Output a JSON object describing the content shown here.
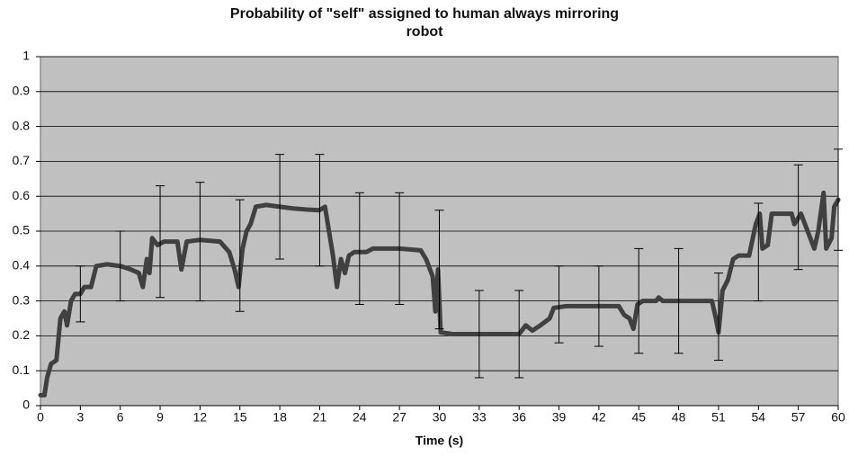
{
  "chart_data": {
    "type": "line",
    "title": "Probability of \"self\" assigned to human always mirroring robot",
    "x_label": "Time (s)",
    "xlim": [
      0,
      60
    ],
    "xticks": [
      0,
      3,
      6,
      9,
      12,
      15,
      18,
      21,
      24,
      27,
      30,
      33,
      36,
      39,
      42,
      45,
      48,
      51,
      54,
      57,
      60
    ],
    "ylim": [
      0,
      1
    ],
    "yticks": [
      0,
      0.1,
      0.2,
      0.3,
      0.4,
      0.5,
      0.6,
      0.7,
      0.8,
      0.9,
      1
    ],
    "grid": true,
    "background": "#c0c0c0",
    "series": [
      {
        "color": "#404040",
        "x": [
          0,
          0.3,
          0.5,
          0.8,
          1.2,
          1.5,
          1.8,
          2.0,
          2.3,
          2.6,
          3.0,
          3.3,
          3.8,
          4.2,
          5,
          6,
          6.8,
          7.4,
          7.7,
          8.0,
          8.2,
          8.4,
          8.8,
          9.3,
          10.3,
          10.6,
          11,
          12,
          13.5,
          14.2,
          14.6,
          14.9,
          15.2,
          15.5,
          15.8,
          16.2,
          17,
          18,
          19,
          20,
          21,
          21.4,
          21.7,
          22,
          22.3,
          22.6,
          22.9,
          23.2,
          23.6,
          24.5,
          25,
          27,
          28.6,
          29,
          29.5,
          29.7,
          29.9,
          30.1,
          31,
          34,
          36,
          36.5,
          37.0,
          37.6,
          38.3,
          38.6,
          39.5,
          43.5,
          43.9,
          44.3,
          44.6,
          44.9,
          45.3,
          46.3,
          46.5,
          46.8,
          50.5,
          50.8,
          51,
          51.3,
          51.7,
          52.1,
          52.5,
          53.3,
          53.8,
          54.1,
          54.3,
          54.7,
          55,
          56.5,
          56.7,
          57.2,
          57.5,
          57.8,
          58.2,
          58.5,
          58.9,
          59.1,
          59.5,
          59.7,
          60
        ],
        "values": [
          0.03,
          0.03,
          0.08,
          0.12,
          0.13,
          0.25,
          0.27,
          0.23,
          0.3,
          0.32,
          0.32,
          0.34,
          0.34,
          0.4,
          0.405,
          0.4,
          0.39,
          0.38,
          0.34,
          0.42,
          0.38,
          0.48,
          0.46,
          0.47,
          0.47,
          0.39,
          0.47,
          0.475,
          0.47,
          0.44,
          0.39,
          0.34,
          0.45,
          0.5,
          0.52,
          0.57,
          0.575,
          0.57,
          0.565,
          0.562,
          0.56,
          0.57,
          0.5,
          0.43,
          0.34,
          0.42,
          0.38,
          0.43,
          0.44,
          0.44,
          0.45,
          0.45,
          0.445,
          0.42,
          0.37,
          0.27,
          0.39,
          0.21,
          0.205,
          0.205,
          0.205,
          0.23,
          0.215,
          0.23,
          0.25,
          0.28,
          0.285,
          0.285,
          0.26,
          0.25,
          0.22,
          0.29,
          0.3,
          0.3,
          0.31,
          0.3,
          0.3,
          0.25,
          0.21,
          0.33,
          0.36,
          0.42,
          0.43,
          0.43,
          0.52,
          0.55,
          0.45,
          0.46,
          0.55,
          0.55,
          0.52,
          0.55,
          0.52,
          0.49,
          0.45,
          0.5,
          0.61,
          0.45,
          0.48,
          0.57,
          0.59
        ]
      }
    ],
    "error_bars": {
      "color": "#000000",
      "x": [
        3,
        6,
        9,
        12,
        15,
        18,
        21,
        24,
        27,
        30,
        33,
        36,
        39,
        42,
        45,
        48,
        51,
        54,
        57,
        60
      ],
      "values": [
        0.32,
        0.4,
        0.47,
        0.47,
        0.43,
        0.57,
        0.56,
        0.45,
        0.45,
        0.39,
        0.205,
        0.205,
        0.29,
        0.285,
        0.3,
        0.3,
        0.255,
        0.44,
        0.54,
        0.59
      ],
      "errors": [
        0.08,
        0.1,
        0.16,
        0.17,
        0.16,
        0.15,
        0.16,
        0.16,
        0.16,
        0.17,
        0.125,
        0.125,
        0.11,
        0.115,
        0.15,
        0.15,
        0.125,
        0.14,
        0.15,
        0.145
      ]
    }
  }
}
